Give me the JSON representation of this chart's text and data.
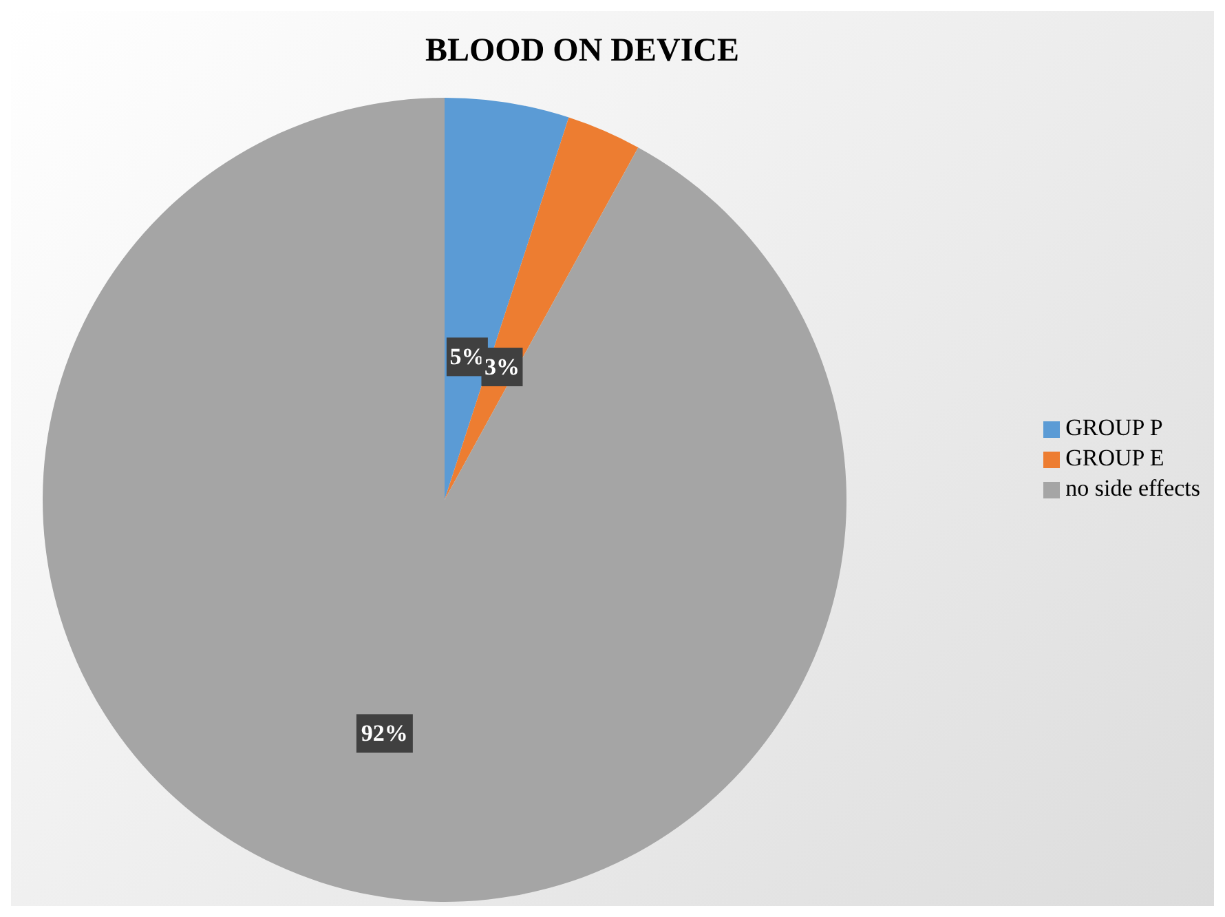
{
  "chart_data": {
    "type": "pie",
    "title": "BLOOD ON DEVICE",
    "categories": [
      "GROUP P",
      "GROUP E",
      "no side effects"
    ],
    "values": [
      5,
      3,
      92
    ],
    "value_labels": [
      "5%",
      "3%",
      "92%"
    ],
    "colors": [
      "#5b9bd5",
      "#ed7d31",
      "#a5a5a5"
    ],
    "legend": "right"
  }
}
